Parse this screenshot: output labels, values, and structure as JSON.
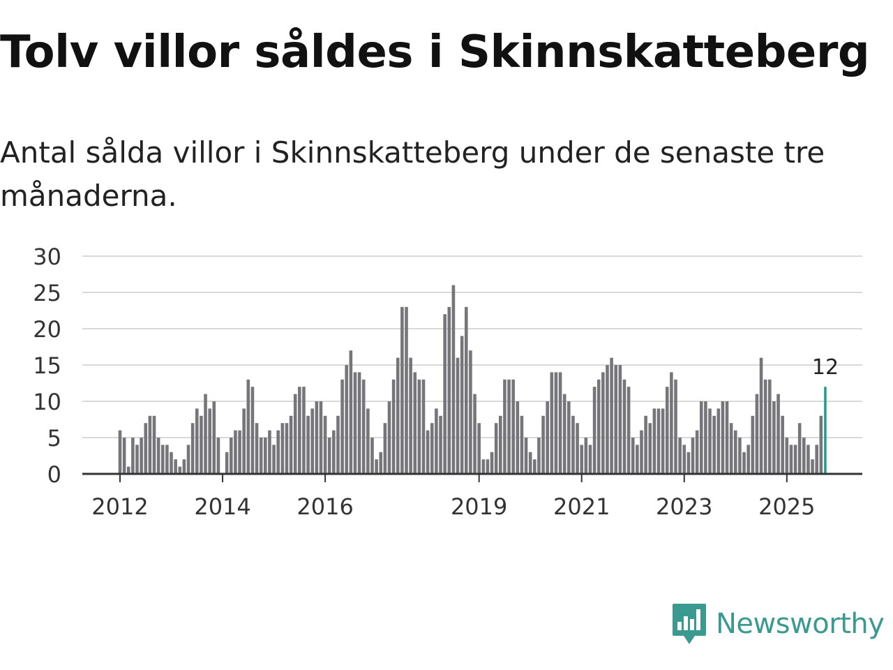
{
  "header": {
    "title": "Tolv villor såldes i Skinnskatteberg",
    "subtitle": "Antal sålda villor i Skinnskatteberg under de senaste tre månaderna."
  },
  "brand": {
    "name": "Newsworthy",
    "color": "#3a9a8f"
  },
  "colors": {
    "bar": "#76757a",
    "highlight": "#1a9e91",
    "grid": "#d9d9d9",
    "axis": "#333333"
  },
  "chart_data": {
    "type": "bar",
    "title": "Tolv villor såldes i Skinnskatteberg",
    "subtitle": "Antal sålda villor i Skinnskatteberg under de senaste tre månaderna.",
    "xlabel": "",
    "ylabel": "",
    "ylim": [
      0,
      30
    ],
    "yticks": [
      0,
      5,
      10,
      15,
      20,
      25,
      30
    ],
    "xticks": [
      {
        "label": "2012",
        "index": 0
      },
      {
        "label": "2014",
        "index": 24
      },
      {
        "label": "2016",
        "index": 48
      },
      {
        "label": "2019",
        "index": 84
      },
      {
        "label": "2021",
        "index": 108
      },
      {
        "label": "2023",
        "index": 132
      },
      {
        "label": "2025",
        "index": 156
      }
    ],
    "period": "monthly, 2012-01 to 2025-09",
    "values": [
      6,
      5,
      1,
      5,
      4,
      5,
      7,
      8,
      8,
      5,
      4,
      4,
      3,
      2,
      1,
      2,
      4,
      7,
      9,
      8,
      11,
      9,
      10,
      5,
      0,
      3,
      5,
      6,
      6,
      9,
      13,
      12,
      7,
      5,
      5,
      6,
      4,
      6,
      7,
      7,
      8,
      11,
      12,
      12,
      8,
      9,
      10,
      10,
      8,
      5,
      6,
      8,
      13,
      15,
      17,
      14,
      14,
      13,
      9,
      5,
      2,
      3,
      7,
      10,
      13,
      16,
      23,
      23,
      16,
      14,
      13,
      13,
      6,
      7,
      9,
      8,
      22,
      23,
      26,
      16,
      19,
      23,
      17,
      11,
      7,
      2,
      2,
      3,
      7,
      8,
      13,
      13,
      13,
      10,
      8,
      5,
      3,
      2,
      5,
      8,
      10,
      14,
      14,
      14,
      11,
      10,
      8,
      7,
      4,
      5,
      4,
      12,
      13,
      14,
      15,
      16,
      15,
      15,
      13,
      12,
      5,
      4,
      6,
      8,
      7,
      9,
      9,
      9,
      12,
      14,
      13,
      5,
      4,
      3,
      5,
      6,
      10,
      10,
      9,
      8,
      9,
      10,
      10,
      7,
      6,
      5,
      3,
      4,
      8,
      11,
      16,
      13,
      13,
      10,
      11,
      8,
      5,
      4,
      4,
      7,
      5,
      4,
      2,
      4,
      8,
      12
    ],
    "highlight": {
      "index": 165,
      "value": 12,
      "label": "12"
    }
  }
}
